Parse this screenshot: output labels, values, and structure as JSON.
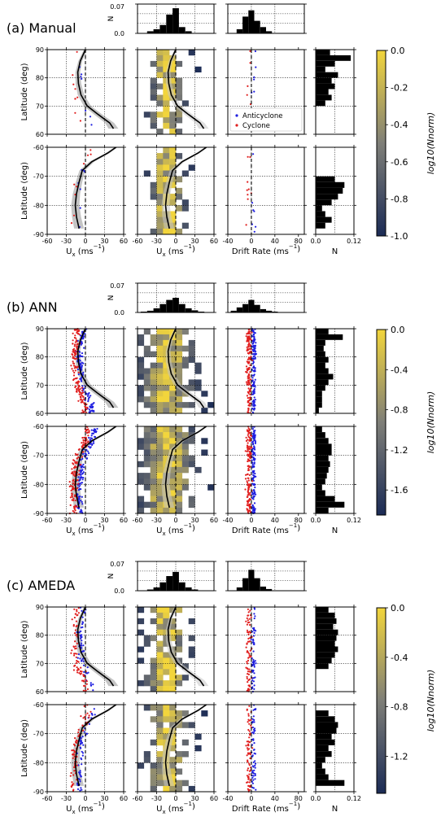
{
  "figure": {
    "sections": [
      {
        "label": "(a) Manual",
        "colorbar_ticks": [
          "0.0",
          "-0.2",
          "-0.4",
          "-0.6",
          "-0.8",
          "-1.0"
        ],
        "colorbar_values": [
          0.0,
          -0.2,
          -0.4,
          -0.6,
          -0.8,
          -1.0
        ],
        "colorbar_range": [
          -1.0,
          0.0
        ]
      },
      {
        "label": "(b) ANN",
        "colorbar_ticks": [
          "0.0",
          "-0.4",
          "-0.8",
          "-1.2",
          "-1.6"
        ],
        "colorbar_values": [
          0.0,
          -0.4,
          -0.8,
          -1.2,
          -1.6
        ],
        "colorbar_range": [
          -1.85,
          0.0
        ]
      },
      {
        "label": "(c) AMEDA",
        "colorbar_ticks": [
          "0.0",
          "-0.4",
          "-0.8",
          "-1.2"
        ],
        "colorbar_values": [
          0.0,
          -0.4,
          -0.8,
          -1.2
        ],
        "colorbar_range": [
          -1.5,
          0.0
        ]
      }
    ],
    "colorbar_label": "log10(Nnorm)",
    "ylabel": "Latitude (deg)",
    "xlabel_ux": "U",
    "xlabel_ux_sub": "x",
    "xlabel_ux_unit": " (ms",
    "xlabel_ux_exp": "−1",
    "xlabel_ux_close": ")",
    "xlabel_drift": "Drift Rate (ms",
    "xlabel_drift_exp": "−1",
    "xlabel_drift_close": ")",
    "xlabel_hist": "N",
    "ylabel_hist": "N",
    "north_ticks": [
      "90",
      "80",
      "70",
      "60"
    ],
    "south_ticks": [
      "-60",
      "-70",
      "-80",
      "-90"
    ],
    "ux_ticks": [
      "-60",
      "-30",
      "0",
      "30",
      "60"
    ],
    "drift_ticks": [
      "-40",
      "0",
      "40",
      "80"
    ],
    "n_ticks": [
      "0.0",
      "0.12"
    ],
    "top_hist_ticks": [
      "0.07",
      "0.0"
    ],
    "legend": {
      "anticyclone": "Anticyclone",
      "cyclone": "Cyclone"
    },
    "colors": {
      "anticyclone": "#1f1fe0",
      "cyclone": "#e01f1f",
      "profile": "#000000",
      "band": "#c4c4c4",
      "cmap_low": "#1b2b55",
      "cmap_mid": "#7f7f78",
      "cmap_high": "#f2d53c"
    }
  },
  "chart_data": [
    {
      "panel": "(a) Manual",
      "type": "scatter",
      "x_axis_ux": [
        -60,
        60
      ],
      "x_axis_drift": [
        -40,
        90
      ],
      "y_north": [
        60,
        90
      ],
      "y_south": [
        -90,
        -60
      ],
      "zonal_wind_profile_north": {
        "lat": [
          90,
          86,
          82,
          78,
          74,
          70,
          67,
          64,
          62
        ],
        "ux": [
          0,
          -8,
          -12,
          -11,
          -7,
          3,
          20,
          38,
          44
        ]
      },
      "zonal_wind_profile_south": {
        "lat": [
          -60,
          -62,
          -65,
          -68,
          -72,
          -76,
          -80,
          -84,
          -88
        ],
        "ux": [
          48,
          35,
          10,
          -5,
          -10,
          -14,
          -16,
          -14,
          -10
        ]
      },
      "north_ux_points": {
        "anticyclone": [
          [
            -8,
            87
          ],
          [
            -5,
            84
          ],
          [
            -6,
            80
          ],
          [
            -4,
            77
          ],
          [
            -7,
            73
          ],
          [
            -5,
            70
          ]
        ],
        "cyclone": [
          [
            -18,
            88
          ],
          [
            -15,
            85
          ],
          [
            -20,
            80
          ],
          [
            -16,
            77
          ],
          [
            -14,
            74
          ],
          [
            -12,
            72
          ],
          [
            -18,
            70
          ]
        ]
      },
      "north_drift_points": {
        "anticyclone": [
          [
            5,
            87
          ],
          [
            8,
            85
          ],
          [
            6,
            82
          ],
          [
            4,
            79
          ],
          [
            7,
            76
          ],
          [
            5,
            73
          ],
          [
            3,
            70
          ]
        ],
        "cyclone": [
          [
            -3,
            88
          ],
          [
            -8,
            86
          ],
          [
            -5,
            81
          ],
          [
            -2,
            78
          ],
          [
            -6,
            75
          ],
          [
            -1,
            72
          ]
        ]
      },
      "south_ux_points": {
        "anticyclone": [
          [
            -20,
            -87
          ],
          [
            -15,
            -86
          ],
          [
            -10,
            -88
          ],
          [
            -25,
            -85
          ]
        ],
        "cyclone": [
          [
            -15,
            -65
          ],
          [
            -12,
            -68
          ],
          [
            -18,
            -72
          ],
          [
            -20,
            -75
          ],
          [
            -16,
            -78
          ],
          [
            -14,
            -70
          ]
        ]
      },
      "south_drift_points": {
        "anticyclone": [
          [
            0,
            -87
          ],
          [
            5,
            -88
          ],
          [
            -3,
            -86
          ],
          [
            8,
            -85
          ],
          [
            2,
            -84
          ]
        ],
        "cyclone": [
          [
            0,
            -65
          ],
          [
            2,
            -68
          ],
          [
            -2,
            -70
          ],
          [
            1,
            -73
          ],
          [
            3,
            -76
          ],
          [
            -1,
            -79
          ]
        ]
      },
      "north_lat_hist": {
        "lat_bins": [
          89,
          87,
          85,
          83,
          81,
          79,
          77,
          75,
          73,
          71
        ],
        "n": [
          0.045,
          0.11,
          0.06,
          0.03,
          0.07,
          0.05,
          0.06,
          0.04,
          0.05,
          0.03
        ]
      },
      "south_lat_hist": {
        "lat_bins": [
          -71,
          -73,
          -75,
          -77,
          -79,
          -81,
          -83,
          -85,
          -87
        ],
        "n": [
          0.06,
          0.09,
          0.085,
          0.07,
          0.05,
          0.02,
          0.03,
          0.05,
          0.03
        ]
      },
      "ux_hist": {
        "bins": [
          -40,
          -30,
          -20,
          -10,
          0,
          10,
          20
        ],
        "n": [
          0.005,
          0.01,
          0.02,
          0.045,
          0.06,
          0.015,
          0.005
        ]
      },
      "drift_hist": {
        "bins": [
          -20,
          -10,
          0,
          10,
          20,
          30
        ],
        "n": [
          0.01,
          0.04,
          0.055,
          0.03,
          0.015,
          0.005
        ]
      }
    },
    {
      "panel": "(b) ANN",
      "type": "scatter",
      "zonal_wind_profile_north": {
        "lat": [
          90,
          86,
          82,
          78,
          74,
          70,
          67,
          64,
          62
        ],
        "ux": [
          0,
          -8,
          -12,
          -11,
          -7,
          3,
          20,
          38,
          44
        ]
      },
      "zonal_wind_profile_south": {
        "lat": [
          -60,
          -62,
          -65,
          -68,
          -72,
          -76,
          -80,
          -84,
          -88
        ],
        "ux": [
          48,
          35,
          10,
          -5,
          -10,
          -14,
          -16,
          -14,
          -10
        ]
      },
      "ux_hist": {
        "bins": [
          -50,
          -40,
          -30,
          -20,
          -10,
          0,
          10,
          20,
          30,
          40
        ],
        "n": [
          0.002,
          0.004,
          0.01,
          0.02,
          0.03,
          0.035,
          0.02,
          0.01,
          0.005,
          0.002
        ]
      },
      "drift_hist": {
        "bins": [
          -30,
          -20,
          -10,
          0,
          10,
          20,
          30,
          40
        ],
        "n": [
          0.004,
          0.012,
          0.02,
          0.03,
          0.018,
          0.008,
          0.004,
          0.002
        ]
      },
      "north_lat_hist": {
        "lat_bins": [
          89,
          87,
          85,
          83,
          81,
          79,
          77,
          75,
          73,
          71,
          69,
          67,
          65,
          63,
          61
        ],
        "n": [
          0.04,
          0.085,
          0.03,
          0.025,
          0.03,
          0.04,
          0.03,
          0.04,
          0.055,
          0.04,
          0.03,
          0.02,
          0.02,
          0.02,
          0.01
        ]
      },
      "south_lat_hist": {
        "lat_bins": [
          -61,
          -63,
          -65,
          -67,
          -69,
          -71,
          -73,
          -75,
          -77,
          -79,
          -81,
          -83,
          -85,
          -87,
          -89
        ],
        "n": [
          0.02,
          0.03,
          0.04,
          0.05,
          0.05,
          0.04,
          0.045,
          0.04,
          0.035,
          0.03,
          0.02,
          0.03,
          0.06,
          0.09,
          0.04
        ]
      }
    },
    {
      "panel": "(c) AMEDA",
      "type": "scatter",
      "zonal_wind_profile_north": {
        "lat": [
          90,
          86,
          82,
          78,
          74,
          70,
          67,
          64,
          62
        ],
        "ux": [
          0,
          -8,
          -12,
          -11,
          -7,
          3,
          20,
          38,
          44
        ]
      },
      "zonal_wind_profile_south": {
        "lat": [
          -60,
          -62,
          -65,
          -68,
          -72,
          -76,
          -80,
          -84,
          -88
        ],
        "ux": [
          48,
          35,
          10,
          -5,
          -10,
          -14,
          -16,
          -14,
          -10
        ]
      },
      "ux_hist": {
        "bins": [
          -40,
          -30,
          -20,
          -10,
          0,
          10,
          20,
          30
        ],
        "n": [
          0.003,
          0.008,
          0.02,
          0.035,
          0.045,
          0.02,
          0.008,
          0.003
        ]
      },
      "drift_hist": {
        "bins": [
          -20,
          -10,
          0,
          10,
          20,
          30
        ],
        "n": [
          0.008,
          0.03,
          0.05,
          0.03,
          0.01,
          0.004
        ]
      },
      "north_lat_hist": {
        "lat_bins": [
          89,
          87,
          85,
          83,
          81,
          79,
          77,
          75,
          73,
          71,
          69
        ],
        "n": [
          0.04,
          0.06,
          0.065,
          0.055,
          0.07,
          0.065,
          0.06,
          0.07,
          0.06,
          0.05,
          0.04
        ]
      },
      "south_lat_hist": {
        "lat_bins": [
          -63,
          -65,
          -67,
          -69,
          -71,
          -73,
          -75,
          -77,
          -79,
          -81,
          -83,
          -85,
          -87
        ],
        "n": [
          0.04,
          0.06,
          0.07,
          0.065,
          0.05,
          0.06,
          0.04,
          0.05,
          0.03,
          0.02,
          0.03,
          0.04,
          0.09
        ]
      }
    }
  ]
}
